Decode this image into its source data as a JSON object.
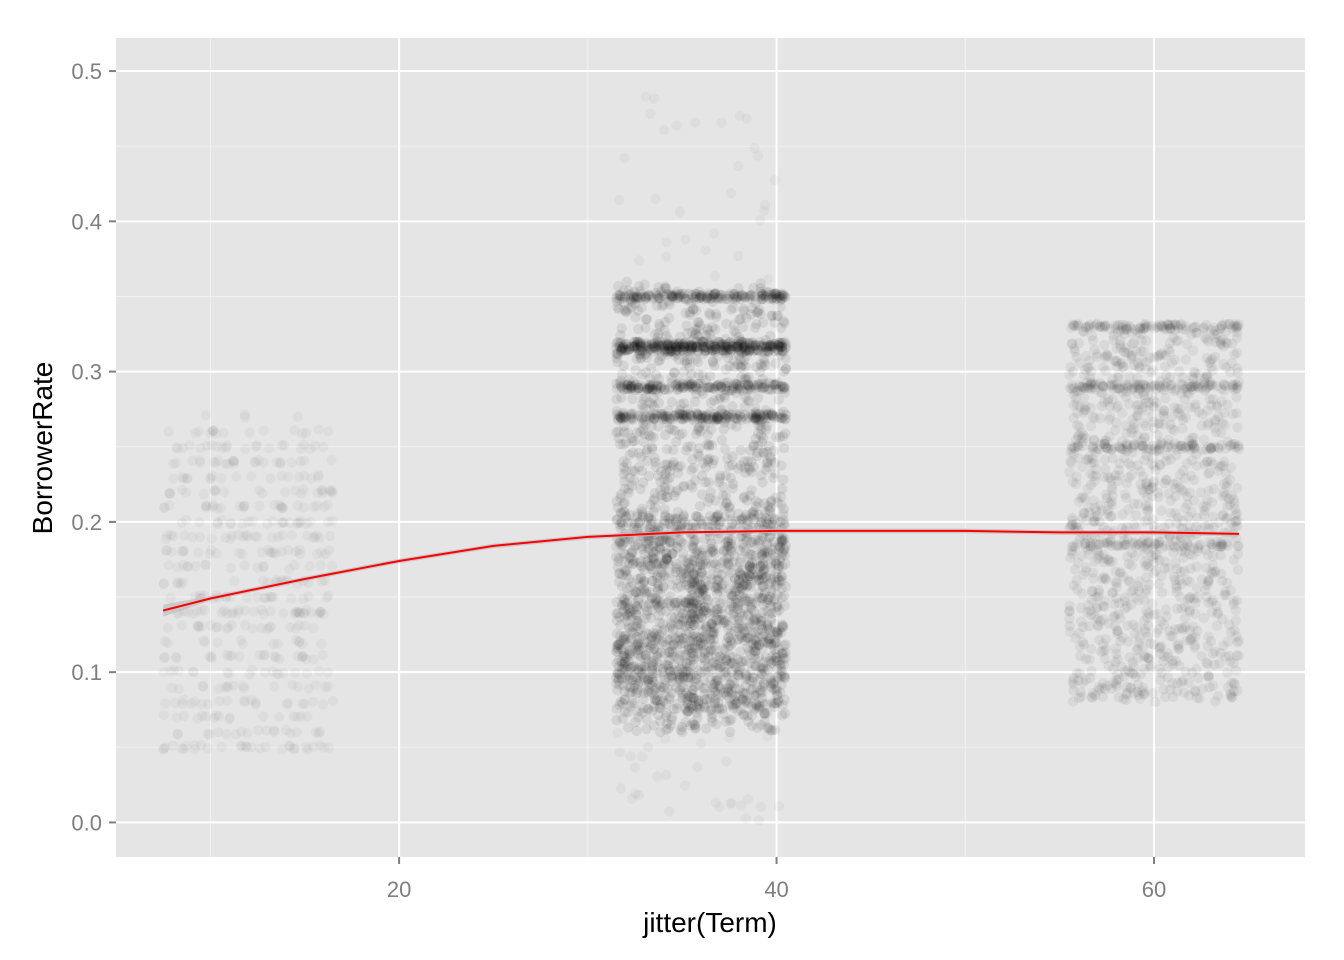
{
  "chart_data": {
    "type": "scatter",
    "title": "",
    "xlabel": "jitter(Term)",
    "ylabel": "BorrowerRate",
    "xlim": [
      5,
      68
    ],
    "ylim": [
      -0.023,
      0.522
    ],
    "x_ticks": [
      {
        "value": 20,
        "label": "20"
      },
      {
        "value": 40,
        "label": "40"
      },
      {
        "value": 60,
        "label": "60"
      }
    ],
    "y_ticks": [
      {
        "value": 0.0,
        "label": "0.0"
      },
      {
        "value": 0.1,
        "label": "0.1"
      },
      {
        "value": 0.2,
        "label": "0.2"
      },
      {
        "value": 0.3,
        "label": "0.3"
      },
      {
        "value": 0.4,
        "label": "0.4"
      },
      {
        "value": 0.5,
        "label": "0.5"
      }
    ],
    "grid": true,
    "point_color": "#000000",
    "point_alpha": 0.05,
    "panel_background": "#e5e5e5",
    "groups": [
      {
        "term": 12,
        "x_range": [
          7.5,
          16.5
        ],
        "y_range": [
          0.045,
          0.268
        ],
        "density": "sparse"
      },
      {
        "term": 36,
        "x_range": [
          31.5,
          40.5
        ],
        "y_range": [
          0.0,
          0.5
        ],
        "core_range": [
          0.06,
          0.36
        ],
        "density": "very dense"
      },
      {
        "term": 60,
        "x_range": [
          55.5,
          64.5
        ],
        "y_range": [
          0.065,
          0.33
        ],
        "density": "dense"
      }
    ],
    "series": [
      {
        "type": "smooth",
        "color": "#ff0000",
        "ribbon_color": "#bdbdbd",
        "x": [
          7.5,
          10,
          15,
          20,
          25,
          30,
          35,
          40,
          45,
          50,
          55,
          60,
          64.5
        ],
        "y": [
          0.141,
          0.149,
          0.162,
          0.174,
          0.184,
          0.19,
          0.193,
          0.194,
          0.194,
          0.194,
          0.193,
          0.193,
          0.192
        ]
      }
    ]
  }
}
